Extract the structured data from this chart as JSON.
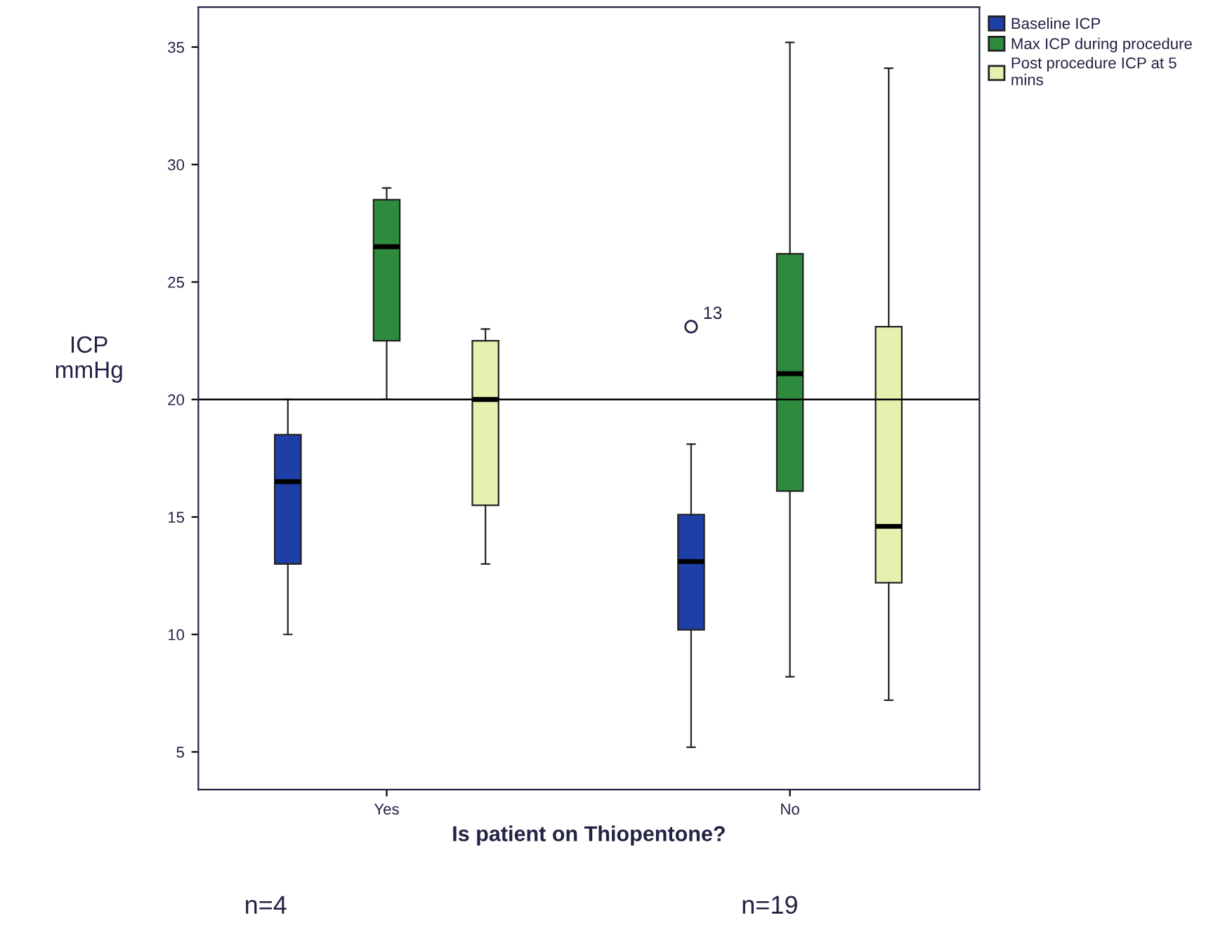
{
  "chart_data": {
    "type": "box",
    "xlabel": "Is patient on Thiopentone?",
    "ylabel": "ICP\nmmHg",
    "categories": [
      "Yes",
      "No"
    ],
    "series": [
      {
        "name": "Baseline ICP",
        "color": "#1f3fa8",
        "boxes": [
          {
            "low": 10,
            "q1": 13,
            "median": 16.5,
            "q3": 18.5,
            "high": 20
          },
          {
            "low": 5.2,
            "q1": 10.2,
            "median": 13.1,
            "q3": 15.1,
            "high": 18.1,
            "outliers": [
              23.1
            ]
          }
        ]
      },
      {
        "name": "Max ICP during procedure",
        "color": "#2e8b3e",
        "boxes": [
          {
            "low": 20,
            "q1": 22.5,
            "median": 26.5,
            "q3": 28.5,
            "high": 29
          },
          {
            "low": 8.2,
            "q1": 16.1,
            "median": 21.1,
            "q3": 26.2,
            "high": 35.2
          }
        ]
      },
      {
        "name": "Post procedure ICP at 5 mins",
        "color": "#e8f0b0",
        "boxes": [
          {
            "low": 13,
            "q1": 15.5,
            "median": 20,
            "q3": 22.5,
            "high": 23
          },
          {
            "low": 7.2,
            "q1": 12.2,
            "median": 14.6,
            "q3": 23.1,
            "high": 34.1
          }
        ]
      }
    ],
    "ylim": [
      3.4,
      36.7
    ],
    "yticks": [
      5,
      10,
      15,
      20,
      25,
      30,
      35
    ],
    "ref_lines": [
      {
        "axis": "y",
        "value": 20,
        "color": "#000000"
      }
    ],
    "annotations": [
      "13",
      "n=4",
      "n=19"
    ],
    "grid": false,
    "legend": "top right"
  }
}
